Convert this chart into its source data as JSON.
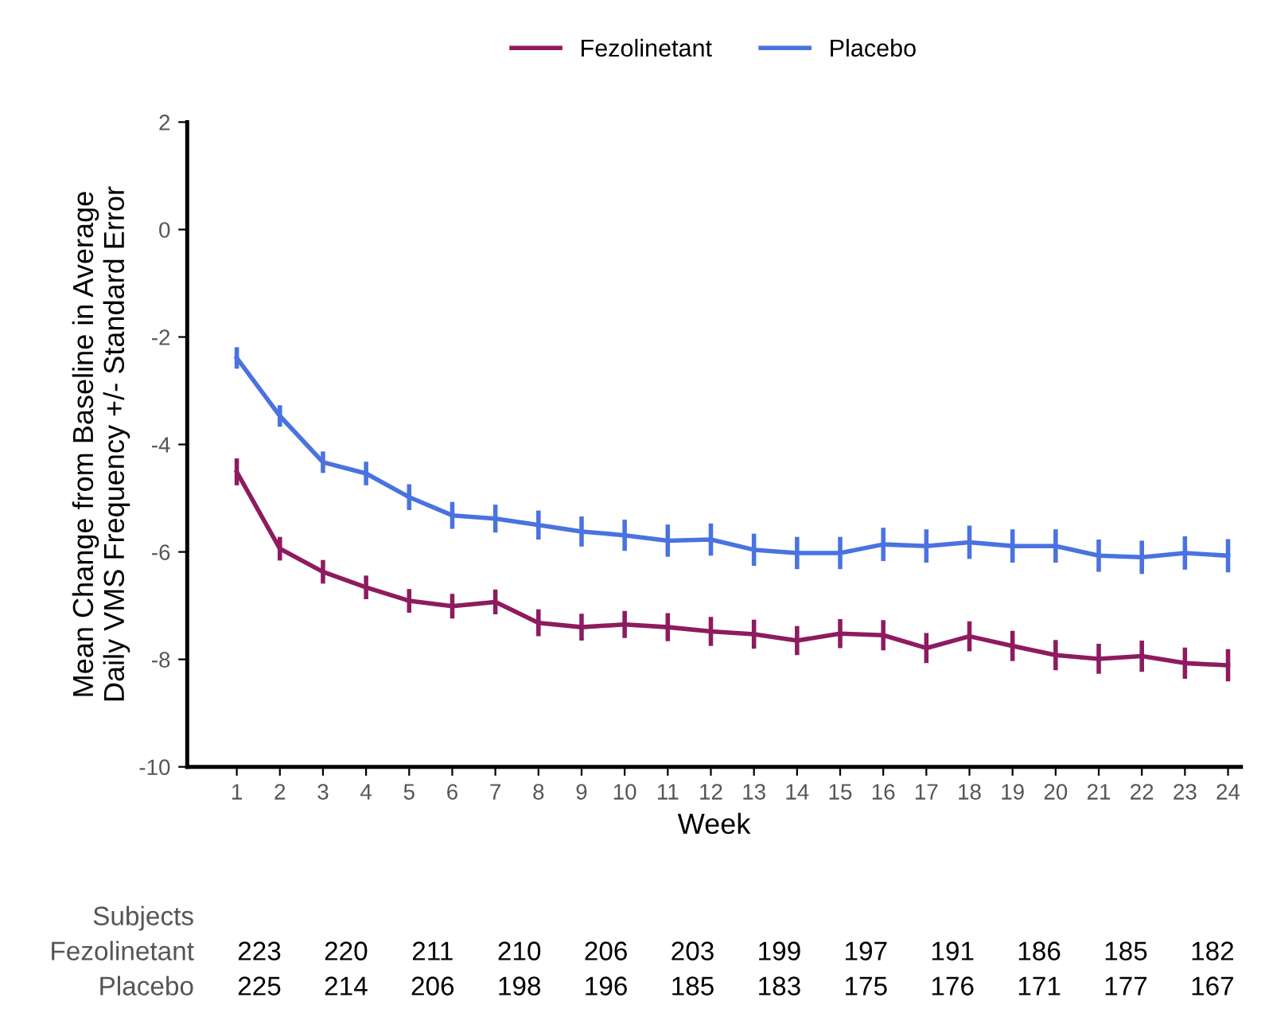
{
  "chart_data": {
    "type": "line",
    "xlabel": "Week",
    "ylabel": "Mean Change from Baseline in Average\nDaily VMS Frequency +/- Standard Error",
    "x": [
      1,
      2,
      3,
      4,
      5,
      6,
      7,
      8,
      9,
      10,
      11,
      12,
      13,
      14,
      15,
      16,
      17,
      18,
      19,
      20,
      21,
      22,
      23,
      24
    ],
    "xlim": [
      -0.15,
      24.3
    ],
    "xticks": [
      1,
      2,
      3,
      4,
      5,
      6,
      7,
      8,
      9,
      10,
      11,
      12,
      13,
      14,
      15,
      16,
      17,
      18,
      19,
      20,
      21,
      22,
      23,
      24
    ],
    "ylim": [
      -10,
      2
    ],
    "yticks": [
      -10,
      -8,
      -6,
      -4,
      -2,
      0,
      2
    ],
    "grid": false,
    "legend": "top",
    "marker": "none",
    "line_style": "solid",
    "series": [
      {
        "name": "Fezolinetant",
        "color": "#8e1b5f",
        "values": [
          -4.51,
          -5.94,
          -6.37,
          -6.66,
          -6.91,
          -7.01,
          -6.93,
          -7.32,
          -7.4,
          -7.35,
          -7.4,
          -7.48,
          -7.53,
          -7.65,
          -7.52,
          -7.55,
          -7.79,
          -7.57,
          -7.75,
          -7.92,
          -7.99,
          -7.94,
          -8.07,
          -8.11
        ],
        "errors": [
          0.25,
          0.22,
          0.22,
          0.22,
          0.22,
          0.23,
          0.23,
          0.25,
          0.25,
          0.25,
          0.26,
          0.27,
          0.27,
          0.27,
          0.27,
          0.28,
          0.28,
          0.28,
          0.28,
          0.28,
          0.28,
          0.29,
          0.29,
          0.3
        ]
      },
      {
        "name": "Placebo",
        "color": "#4a72e0",
        "values": [
          -2.39,
          -3.47,
          -4.33,
          -4.54,
          -4.98,
          -5.32,
          -5.38,
          -5.5,
          -5.62,
          -5.69,
          -5.79,
          -5.77,
          -5.96,
          -6.02,
          -6.02,
          -5.86,
          -5.89,
          -5.82,
          -5.89,
          -5.89,
          -6.07,
          -6.1,
          -6.02,
          -6.07
        ],
        "errors": [
          0.2,
          0.2,
          0.2,
          0.22,
          0.24,
          0.25,
          0.26,
          0.27,
          0.28,
          0.29,
          0.3,
          0.3,
          0.3,
          0.3,
          0.3,
          0.31,
          0.31,
          0.31,
          0.31,
          0.31,
          0.3,
          0.31,
          0.31,
          0.31
        ]
      }
    ],
    "annotations": [
      "Subjects",
      "Fezolinetant",
      "223",
      "220",
      "211",
      "210",
      "206",
      "203",
      "199",
      "197",
      "191",
      "186",
      "185",
      "182",
      "Placebo",
      "225",
      "214",
      "206",
      "198",
      "196",
      "185",
      "183",
      "175",
      "176",
      "171",
      "177",
      "167"
    ]
  }
}
